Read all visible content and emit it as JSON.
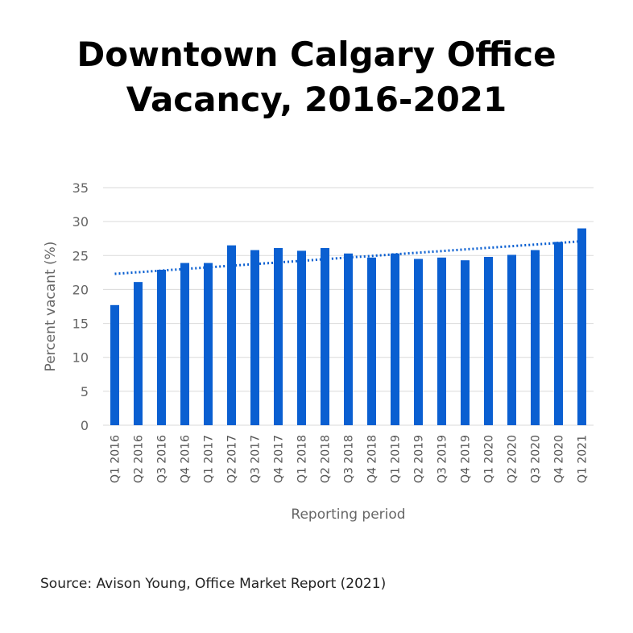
{
  "title_lines": [
    "Downtown Calgary Office",
    "Vacancy, 2016-2021"
  ],
  "source": "Source: Avison Young, Office Market Report (2021)",
  "colors": {
    "bar": "#0a5fd1",
    "trend": "#0a5fd1",
    "grid": "#dadada"
  },
  "chart_data": {
    "type": "bar",
    "title": "Downtown Calgary Office Vacancy, 2016-2021",
    "xlabel": "Reporting period",
    "ylabel": "Percent vacant (%)",
    "ylim": [
      0,
      35
    ],
    "yticks": [
      0,
      5,
      10,
      15,
      20,
      25,
      30,
      35
    ],
    "grid": true,
    "categories": [
      "Q1 2016",
      "Q2 2016",
      "Q3 2016",
      "Q4 2016",
      "Q1 2017",
      "Q2 2017",
      "Q3 2017",
      "Q4 2017",
      "Q1 2018",
      "Q2 2018",
      "Q3 2018",
      "Q4 2018",
      "Q1 2019",
      "Q2 2019",
      "Q3 2019",
      "Q4 2019",
      "Q1 2020",
      "Q2 2020",
      "Q3 2020",
      "Q4 2020",
      "Q1 2021"
    ],
    "values": [
      17.7,
      21.1,
      22.9,
      23.9,
      23.9,
      26.5,
      25.8,
      26.1,
      25.7,
      26.1,
      25.3,
      24.7,
      25.3,
      24.5,
      24.7,
      24.3,
      24.8,
      25.1,
      25.8,
      27.0,
      29.0
    ],
    "trendline": {
      "style": "dotted",
      "start": 22.3,
      "end": 27.1
    }
  }
}
